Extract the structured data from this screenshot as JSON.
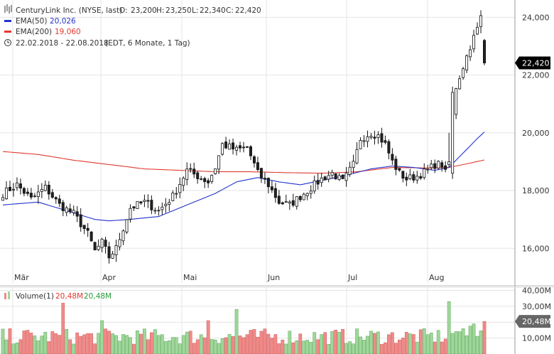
{
  "legend": {
    "title": "CenturyLink Inc. (NYSE, last)",
    "open_label": "O:",
    "open": "23,200",
    "high_label": "H:",
    "high": "23,250",
    "low_label": "L:",
    "low": "22,340",
    "close_label": "C:",
    "close": "22,420",
    "ema50_label": "EMA(50)",
    "ema50_value": "20,026",
    "ema200_label": "EMA(200)",
    "ema200_value": "19,060",
    "range": "22.02.2018 - 22.08.2018",
    "range_info": "(EDT, 6 Monate, 1 Tag)",
    "volume_label": "Volume(1)",
    "volume_value1": "20,48M",
    "volume_value2": "20,48M"
  },
  "colors": {
    "up": "#ffffff",
    "down": "#222222",
    "ema50": "#2233cc",
    "ema200": "#e03a2f",
    "vol_up": "#9fd89a",
    "vol_down": "#f08a88",
    "grid": "#e4e4e4",
    "price_tag_bg": "#000000",
    "vol_tag_bg": "#666666"
  },
  "chart_data": [
    {
      "type": "candlestick",
      "title": "CenturyLink Inc. (NYSE, last)",
      "x_labels": [
        "Mär",
        "Apr",
        "Mai",
        "Jun",
        "Jul",
        "Aug"
      ],
      "y_ticks": [
        "16,000",
        "18,000",
        "20,000",
        "22,000",
        "24,000"
      ],
      "ylim": [
        14.8,
        24.6
      ],
      "current_price_label": "22,420",
      "current_price": 22.42,
      "anchors_close": [
        [
          0,
          17.9
        ],
        [
          4,
          18.2
        ],
        [
          8,
          17.7
        ],
        [
          12,
          18.1
        ],
        [
          16,
          17.5
        ],
        [
          20,
          17.2
        ],
        [
          24,
          16.5
        ],
        [
          26,
          15.9
        ],
        [
          28,
          16.2
        ],
        [
          30,
          15.7
        ],
        [
          32,
          16.0
        ],
        [
          34,
          16.7
        ],
        [
          36,
          17.4
        ],
        [
          40,
          17.6
        ],
        [
          44,
          17.3
        ],
        [
          48,
          17.8
        ],
        [
          52,
          18.7
        ],
        [
          55,
          18.5
        ],
        [
          58,
          18.3
        ],
        [
          60,
          18.8
        ],
        [
          62,
          19.6
        ],
        [
          66,
          19.4
        ],
        [
          69,
          19.5
        ],
        [
          72,
          18.6
        ],
        [
          75,
          18.2
        ],
        [
          78,
          17.6
        ],
        [
          81,
          17.5
        ],
        [
          84,
          17.8
        ],
        [
          87,
          18.1
        ],
        [
          90,
          18.4
        ],
        [
          93,
          18.6
        ],
        [
          96,
          18.3
        ],
        [
          99,
          18.9
        ],
        [
          101,
          19.8
        ],
        [
          104,
          20.0
        ],
        [
          106,
          19.9
        ],
        [
          108,
          19.6
        ],
        [
          110,
          19.0
        ],
        [
          112,
          18.6
        ],
        [
          114,
          18.4
        ],
        [
          117,
          18.5
        ],
        [
          120,
          18.7
        ],
        [
          122,
          18.9
        ],
        [
          124,
          18.9
        ],
        [
          125,
          18.6
        ],
        [
          126,
          19.6
        ],
        [
          128,
          21.6
        ],
        [
          130,
          22.3
        ],
        [
          132,
          23.0
        ],
        [
          134,
          23.6
        ],
        [
          135,
          24.0
        ],
        [
          136,
          22.42
        ]
      ],
      "ema50": [
        [
          0,
          17.5
        ],
        [
          10,
          17.6
        ],
        [
          18,
          17.3
        ],
        [
          26,
          17.0
        ],
        [
          30,
          16.95
        ],
        [
          36,
          17.0
        ],
        [
          44,
          17.1
        ],
        [
          52,
          17.5
        ],
        [
          60,
          17.9
        ],
        [
          66,
          18.3
        ],
        [
          72,
          18.45
        ],
        [
          78,
          18.3
        ],
        [
          84,
          18.2
        ],
        [
          90,
          18.35
        ],
        [
          96,
          18.5
        ],
        [
          104,
          18.75
        ],
        [
          110,
          18.85
        ],
        [
          116,
          18.8
        ],
        [
          122,
          18.7
        ],
        [
          126,
          18.8
        ],
        [
          130,
          19.3
        ],
        [
          134,
          19.8
        ],
        [
          136,
          20.03
        ]
      ],
      "ema200": [
        [
          0,
          19.35
        ],
        [
          10,
          19.25
        ],
        [
          20,
          19.05
        ],
        [
          30,
          18.9
        ],
        [
          40,
          18.75
        ],
        [
          50,
          18.7
        ],
        [
          60,
          18.65
        ],
        [
          70,
          18.65
        ],
        [
          80,
          18.62
        ],
        [
          90,
          18.6
        ],
        [
          100,
          18.65
        ],
        [
          110,
          18.8
        ],
        [
          120,
          18.78
        ],
        [
          126,
          18.8
        ],
        [
          132,
          18.95
        ],
        [
          136,
          19.06
        ]
      ]
    },
    {
      "type": "bar",
      "title": "Volume(1)",
      "y_ticks": [
        "10,00M",
        "20,00M",
        "30,00M",
        "40,00M"
      ],
      "ylim": [
        0,
        42
      ],
      "current_volume_label": "20,48M",
      "current_volume": 20.48,
      "spikes": [
        [
          17,
          32
        ],
        [
          28,
          21
        ],
        [
          58,
          21
        ],
        [
          66,
          28
        ],
        [
          126,
          33
        ],
        [
          136,
          20.48
        ]
      ]
    }
  ]
}
